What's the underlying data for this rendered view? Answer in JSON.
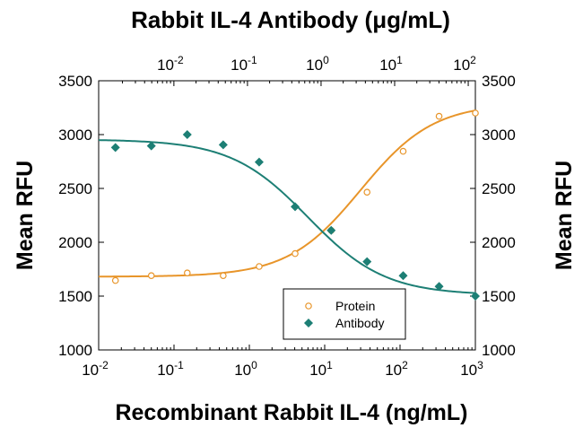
{
  "chart_data": {
    "type": "scatter",
    "title": "Rabbit IL-4 Antibody (μg/mL)",
    "xlabel": "Recombinant Rabbit IL-4 (ng/mL)",
    "ylabel": "Mean RFU",
    "ylabel_right": "Mean RFU",
    "x_scale": "log",
    "xlim": [
      0.01,
      1000
    ],
    "ylim": [
      1000,
      3500
    ],
    "x_ticks": [
      {
        "base": "10",
        "exp": "-2",
        "value": 0.01
      },
      {
        "base": "10",
        "exp": "-1",
        "value": 0.1
      },
      {
        "base": "10",
        "exp": "0",
        "value": 1
      },
      {
        "base": "10",
        "exp": "1",
        "value": 10
      },
      {
        "base": "10",
        "exp": "2",
        "value": 100
      },
      {
        "base": "10",
        "exp": "3",
        "value": 1000
      }
    ],
    "top_x_ticks": [
      {
        "base": "10",
        "exp": "-2",
        "value": 0.01
      },
      {
        "base": "10",
        "exp": "-1",
        "value": 0.1
      },
      {
        "base": "10",
        "exp": "0",
        "value": 1
      },
      {
        "base": "10",
        "exp": "1",
        "value": 10
      },
      {
        "base": "10",
        "exp": "2",
        "value": 100
      }
    ],
    "top_xlim": [
      0.00095,
      125
    ],
    "y_ticks": [
      "1000",
      "1500",
      "2000",
      "2500",
      "3000",
      "3500"
    ],
    "legend_position": "bottom-right",
    "series": [
      {
        "name": "Protein",
        "marker": "open-circle",
        "color": "#e8952a",
        "points": [
          {
            "x": 0.0167,
            "y": 1645
          },
          {
            "x": 0.05,
            "y": 1690
          },
          {
            "x": 0.15,
            "y": 1715
          },
          {
            "x": 0.45,
            "y": 1690
          },
          {
            "x": 1.35,
            "y": 1775
          },
          {
            "x": 4.05,
            "y": 1895
          },
          {
            "x": 12.2,
            "y": 2110
          },
          {
            "x": 36.5,
            "y": 2465
          },
          {
            "x": 110,
            "y": 2845
          },
          {
            "x": 330,
            "y": 3170
          },
          {
            "x": 1000,
            "y": 3200
          }
        ],
        "fit": {
          "bottom": 1680,
          "top": 3290,
          "ec50": 30,
          "hill": 0.9
        }
      },
      {
        "name": "Antibody",
        "marker": "filled-diamond",
        "color": "#1d7f75",
        "points": [
          {
            "x": 0.0167,
            "y": 2880
          },
          {
            "x": 0.05,
            "y": 2895
          },
          {
            "x": 0.15,
            "y": 3000
          },
          {
            "x": 0.45,
            "y": 2905
          },
          {
            "x": 1.35,
            "y": 2745
          },
          {
            "x": 4.05,
            "y": 2330
          },
          {
            "x": 12.2,
            "y": 2110
          },
          {
            "x": 36.5,
            "y": 1820
          },
          {
            "x": 110,
            "y": 1690
          },
          {
            "x": 330,
            "y": 1590
          },
          {
            "x": 1000,
            "y": 1500
          }
        ],
        "fit": {
          "bottom": 1510,
          "top": 2955,
          "ec50": 6,
          "hill": -0.85
        }
      }
    ]
  }
}
